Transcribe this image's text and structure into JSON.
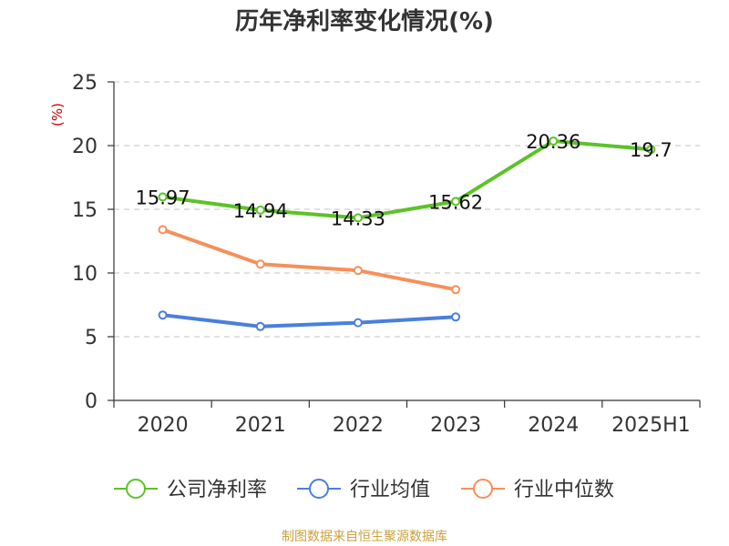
{
  "chart_data": {
    "type": "line",
    "title": "历年净利率变化情况(%)",
    "unit_label": "(%)",
    "categories": [
      "2020",
      "2021",
      "2022",
      "2023",
      "2024",
      "2025H1"
    ],
    "ylim": [
      0,
      25
    ],
    "yticks": [
      "0",
      "5",
      "10",
      "15",
      "20",
      "25"
    ],
    "grid": true,
    "legend_position": "bottom",
    "series": [
      {
        "name": "公司净利率",
        "color": "#5cc228",
        "values": [
          15.97,
          14.94,
          14.33,
          15.62,
          20.36,
          19.7
        ],
        "labels": [
          "15.97",
          "14.94",
          "14.33",
          "15.62",
          "20.36",
          "19.7"
        ]
      },
      {
        "name": "行业均值",
        "color": "#4a7fdc",
        "values": [
          6.7,
          5.8,
          6.1,
          6.55,
          null,
          null
        ]
      },
      {
        "name": "行业中位数",
        "color": "#f5905a",
        "values": [
          13.4,
          10.7,
          10.2,
          8.7,
          null,
          null
        ]
      }
    ],
    "source": "制图数据来自恒生聚源数据库"
  }
}
